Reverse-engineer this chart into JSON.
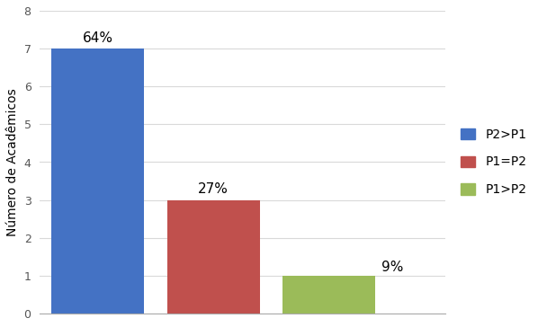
{
  "categories": [
    "P2>P1",
    "P1=P2",
    "P1>P2"
  ],
  "values": [
    7,
    3,
    1
  ],
  "labels": [
    "64%",
    "27%",
    "9%"
  ],
  "label_offsets": [
    0,
    0,
    1
  ],
  "bar_colors": [
    "#4472C4",
    "#C0504D",
    "#9BBB59"
  ],
  "legend_labels": [
    "P2>P1",
    "P1=P2",
    "P1>P2"
  ],
  "ylabel": "Número de Acadêmicos",
  "ylim": [
    0,
    8
  ],
  "yticks": [
    0,
    1,
    2,
    3,
    4,
    5,
    6,
    7,
    8
  ],
  "background_color": "#FFFFFF",
  "grid_color": "#D9D9D9",
  "label_fontsize": 11,
  "ylabel_fontsize": 10,
  "legend_fontsize": 10,
  "bar_width": 0.8,
  "x_positions": [
    0.5,
    1.5,
    2.5
  ]
}
